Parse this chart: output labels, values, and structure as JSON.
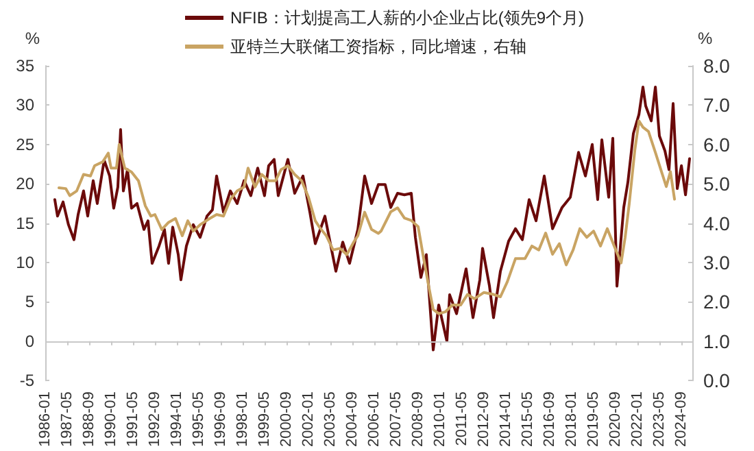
{
  "chart_data": {
    "type": "line",
    "ylabel": "%",
    "y2label": "%",
    "xlim": [
      "1986-01",
      "2025-05"
    ],
    "xticks": [
      "1986-01",
      "1987-05",
      "1988-09",
      "1990-01",
      "1991-05",
      "1992-09",
      "1994-01",
      "1995-05",
      "1996-09",
      "1998-01",
      "1999-05",
      "2000-09",
      "2002-01",
      "2003-05",
      "2004-09",
      "2006-01",
      "2007-05",
      "2008-09",
      "2010-01",
      "2011-05",
      "2012-09",
      "2014-01",
      "2015-05",
      "2016-09",
      "2018-01",
      "2019-05",
      "2020-09",
      "2022-01",
      "2023-05",
      "2024-09"
    ],
    "ylim": [
      -5,
      35
    ],
    "yticks": [
      -5,
      0,
      5,
      10,
      15,
      20,
      25,
      30,
      35
    ],
    "y2lim": [
      0,
      8
    ],
    "y2ticks": [
      {
        "value": 0,
        "label": "0.0"
      },
      {
        "value": 1,
        "label": "1.0"
      },
      {
        "value": 2,
        "label": "2.0"
      },
      {
        "value": 3,
        "label": "3.0"
      },
      {
        "value": 4,
        "label": "4.0"
      },
      {
        "value": 5,
        "label": "5.0"
      },
      {
        "value": 6,
        "label": "6.0"
      },
      {
        "value": 7,
        "label": "7.0"
      },
      {
        "value": 8,
        "label": "8.0"
      }
    ],
    "ref_lines": [
      {
        "axis": "y",
        "value": 0,
        "color": "#c8c8c8",
        "line_style": "solid"
      }
    ],
    "grid": false,
    "legend": "top",
    "marker": "none",
    "line_style": "solid",
    "series": [
      {
        "name": "NFIB：计划提高工人薪的小企业占比(领先9个月)",
        "color": "#6b0a0a",
        "x": [
          "1986-08",
          "1986-10",
          "1987-02",
          "1987-06",
          "1987-10",
          "1988-01",
          "1988-05",
          "1988-08",
          "1988-12",
          "1989-03",
          "1989-08",
          "1989-12",
          "1990-03",
          "1990-06",
          "1990-08",
          "1990-10",
          "1991-01",
          "1991-04",
          "1991-08",
          "1992-01",
          "1992-04",
          "1992-07",
          "1992-12",
          "1993-04",
          "1993-07",
          "1993-10",
          "1994-02",
          "1994-04",
          "1994-08",
          "1995-01",
          "1995-06",
          "1995-11",
          "1996-03",
          "1996-06",
          "1996-11",
          "1997-04",
          "1997-09",
          "1998-02",
          "1998-07",
          "1998-12",
          "1999-05",
          "1999-08",
          "1999-12",
          "2000-03",
          "2000-10",
          "2001-03",
          "2001-09",
          "2002-02",
          "2002-06",
          "2003-01",
          "2003-09",
          "2004-02",
          "2004-07",
          "2005-01",
          "2005-06",
          "2005-11",
          "2006-04",
          "2006-09",
          "2007-01",
          "2007-06",
          "2007-11",
          "2008-04",
          "2008-07",
          "2008-11",
          "2009-03",
          "2009-08",
          "2009-12",
          "2010-06",
          "2010-08",
          "2011-01",
          "2011-08",
          "2012-01",
          "2012-06",
          "2012-08",
          "2013-01",
          "2013-04",
          "2013-09",
          "2014-03",
          "2014-08",
          "2015-01",
          "2015-06",
          "2015-11",
          "2016-05",
          "2016-11",
          "2017-06",
          "2017-12",
          "2018-06",
          "2018-11",
          "2019-04",
          "2019-08",
          "2019-11",
          "2020-04",
          "2020-07",
          "2020-10",
          "2021-03",
          "2021-06",
          "2021-10",
          "2022-02",
          "2022-05",
          "2022-07",
          "2022-11",
          "2023-02",
          "2023-05",
          "2023-09",
          "2023-12",
          "2024-03",
          "2024-06",
          "2024-09",
          "2024-12",
          "2025-03"
        ],
        "values": [
          18.0,
          15.9,
          17.7,
          14.8,
          12.9,
          16.1,
          19.1,
          15.9,
          20.4,
          17.5,
          23.0,
          21.0,
          16.9,
          19.6,
          26.9,
          19.1,
          21.8,
          16.9,
          17.5,
          14.2,
          15.3,
          9.9,
          12.1,
          14.2,
          9.9,
          14.5,
          11.0,
          7.8,
          12.1,
          14.8,
          13.2,
          15.9,
          16.7,
          21.0,
          16.4,
          19.1,
          17.5,
          20.4,
          18.5,
          22.0,
          18.5,
          22.3,
          23.1,
          18.5,
          23.1,
          18.8,
          21.0,
          16.4,
          12.4,
          15.9,
          8.9,
          12.6,
          9.9,
          14.2,
          21.0,
          17.5,
          19.9,
          19.9,
          17.0,
          18.8,
          18.6,
          18.8,
          13.2,
          8.1,
          11.0,
          -1.1,
          4.6,
          0.0,
          5.9,
          3.5,
          9.2,
          3.0,
          7.8,
          11.8,
          7.0,
          3.0,
          8.9,
          12.7,
          14.3,
          12.9,
          18.0,
          15.3,
          21.0,
          14.3,
          17.0,
          18.3,
          24.0,
          21.0,
          25.0,
          18.0,
          25.6,
          18.3,
          25.8,
          7.0,
          17.0,
          20.2,
          26.4,
          28.8,
          32.3,
          29.9,
          28.0,
          32.3,
          26.1,
          24.2,
          21.8,
          30.2,
          19.4,
          22.3,
          18.6,
          23.2
        ]
      },
      {
        "name": "亚特兰大联储工资指标，同比增速，右轴",
        "color": "#c9a463",
        "axis": "y2",
        "x": [
          "1986-11",
          "1987-04",
          "1987-07",
          "1987-12",
          "1988-05",
          "1988-10",
          "1989-01",
          "1989-07",
          "1989-11",
          "1990-01",
          "1990-05",
          "1990-07",
          "1990-11",
          "1991-04",
          "1991-09",
          "1992-02",
          "1992-06",
          "1992-09",
          "1993-02",
          "1993-07",
          "1993-12",
          "1994-05",
          "1994-09",
          "1995-01",
          "1995-06",
          "1996-01",
          "1996-06",
          "1996-11",
          "1997-04",
          "1997-09",
          "1998-02",
          "1998-05",
          "1998-10",
          "1999-03",
          "1999-08",
          "2000-01",
          "2000-05",
          "2000-10",
          "2001-03",
          "2001-08",
          "2002-01",
          "2002-06",
          "2002-09",
          "2003-02",
          "2003-07",
          "2003-12",
          "2004-05",
          "2004-10",
          "2005-01",
          "2005-06",
          "2005-11",
          "2006-04",
          "2006-06",
          "2007-01",
          "2007-06",
          "2007-11",
          "2008-04",
          "2008-09",
          "2009-01",
          "2009-05",
          "2009-08",
          "2009-12",
          "2010-05",
          "2010-10",
          "2011-04",
          "2011-09",
          "2012-02",
          "2012-09",
          "2013-04",
          "2013-09",
          "2014-02",
          "2014-08",
          "2015-03",
          "2015-08",
          "2016-01",
          "2016-06",
          "2016-11",
          "2017-04",
          "2017-09",
          "2018-02",
          "2018-07",
          "2018-12",
          "2019-05",
          "2019-10",
          "2020-03",
          "2020-08",
          "2021-01",
          "2021-04",
          "2021-07",
          "2021-11",
          "2022-02",
          "2022-05",
          "2022-09",
          "2023-02",
          "2023-07",
          "2023-10",
          "2024-01",
          "2024-04"
        ],
        "values": [
          4.9,
          4.88,
          4.7,
          4.82,
          5.24,
          5.2,
          5.46,
          5.56,
          5.78,
          5.4,
          5.4,
          6.0,
          5.4,
          5.3,
          5.08,
          4.44,
          4.18,
          4.22,
          3.84,
          4.02,
          4.12,
          3.68,
          4.06,
          3.8,
          3.96,
          4.12,
          4.22,
          4.18,
          4.6,
          4.82,
          4.92,
          5.4,
          4.92,
          5.24,
          5.08,
          5.08,
          5.36,
          5.46,
          5.24,
          5.08,
          4.66,
          4.06,
          3.9,
          3.68,
          3.32,
          3.36,
          3.2,
          3.52,
          3.68,
          4.28,
          3.84,
          3.74,
          3.8,
          4.29,
          4.39,
          4.13,
          4.07,
          3.91,
          3.1,
          2.35,
          1.81,
          1.7,
          1.75,
          1.92,
          1.92,
          2.19,
          2.08,
          2.24,
          2.19,
          2.13,
          2.51,
          3.1,
          3.1,
          3.42,
          3.32,
          3.75,
          3.21,
          3.48,
          2.94,
          3.32,
          3.86,
          3.64,
          3.8,
          3.42,
          3.86,
          3.42,
          2.99,
          3.64,
          4.5,
          5.85,
          6.6,
          6.44,
          6.33,
          5.8,
          5.26,
          4.93,
          5.31,
          4.61
        ]
      }
    ]
  }
}
